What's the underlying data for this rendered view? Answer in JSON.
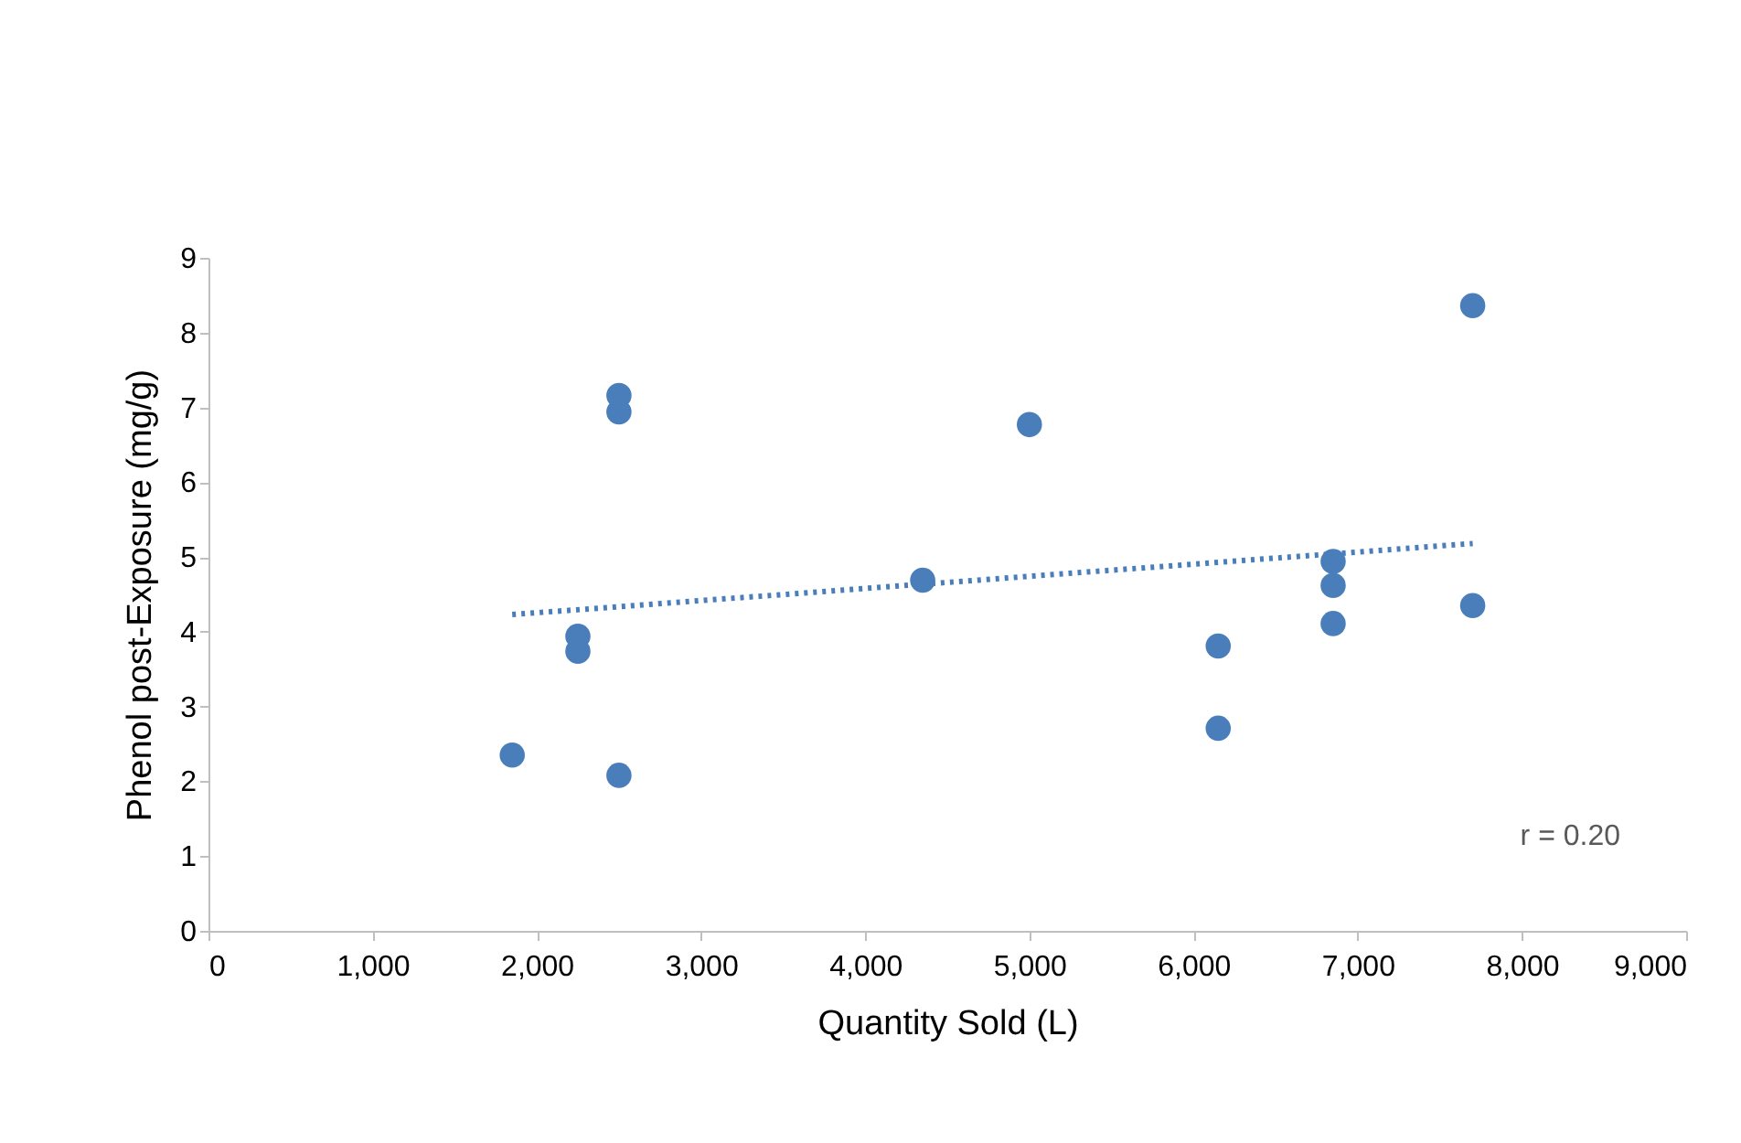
{
  "chart_data": {
    "type": "scatter",
    "xlabel": "Quantity Sold (L)",
    "ylabel": "Phenol post-Exposure (mg/g)",
    "xlim": [
      0,
      9000
    ],
    "xticks": [
      {
        "value": 0,
        "label": "0"
      },
      {
        "value": 1000,
        "label": "1,000"
      },
      {
        "value": 2000,
        "label": "2,000"
      },
      {
        "value": 3000,
        "label": "3,000"
      },
      {
        "value": 4000,
        "label": "4,000"
      },
      {
        "value": 5000,
        "label": "5,000"
      },
      {
        "value": 6000,
        "label": "6,000"
      },
      {
        "value": 7000,
        "label": "7,000"
      },
      {
        "value": 8000,
        "label": "8,000"
      },
      {
        "value": 9000,
        "label": "9,000"
      }
    ],
    "ylim": [
      0,
      9
    ],
    "yticks": [
      0,
      1,
      2,
      3,
      4,
      5,
      6,
      7,
      8,
      9
    ],
    "grid": false,
    "series": [
      {
        "marker": "circle",
        "color": "#4a7ebb",
        "x": [
          1850,
          2250,
          2250,
          2500,
          2500,
          2500,
          4350,
          5000,
          6150,
          6150,
          6850,
          6850,
          6850,
          7700,
          7700
        ],
        "values": [
          2.35,
          3.94,
          3.74,
          7.16,
          6.94,
          2.08,
          4.69,
          6.77,
          3.81,
          2.71,
          4.94,
          4.62,
          4.11,
          8.36,
          4.35
        ]
      },
      {
        "type": "line",
        "color": "#4a7ebb",
        "line_style": "dotted",
        "x": [
          1850,
          7700
        ],
        "values": [
          4.23,
          5.18
        ]
      }
    ],
    "annotations": [
      "r = 0.20"
    ]
  }
}
